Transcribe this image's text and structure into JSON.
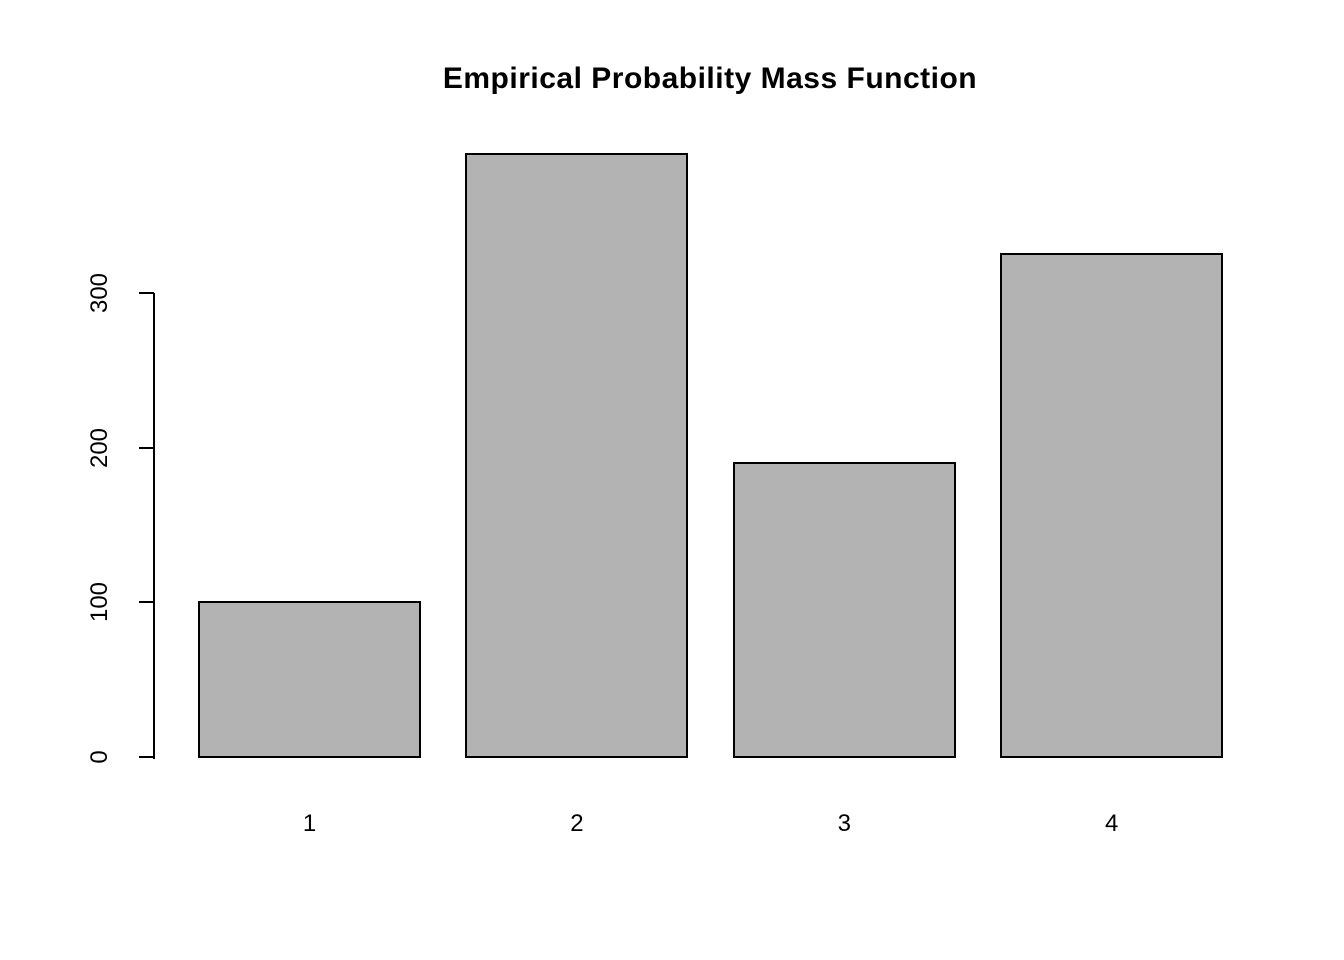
{
  "title": "Empirical Probability Mass Function",
  "chart_data": {
    "type": "bar",
    "title": "Empirical Probability Mass Function",
    "categories": [
      "1",
      "2",
      "3",
      "4"
    ],
    "values": [
      100,
      390,
      190,
      325
    ],
    "xlabel": "",
    "ylabel": "",
    "yticks": [
      0,
      100,
      200,
      300
    ],
    "ylim": [
      0,
      390
    ],
    "grid": false,
    "legend": "none",
    "bar_fill": "#b3b3b3",
    "bar_border": "#000000",
    "axis_color": "#000000"
  }
}
